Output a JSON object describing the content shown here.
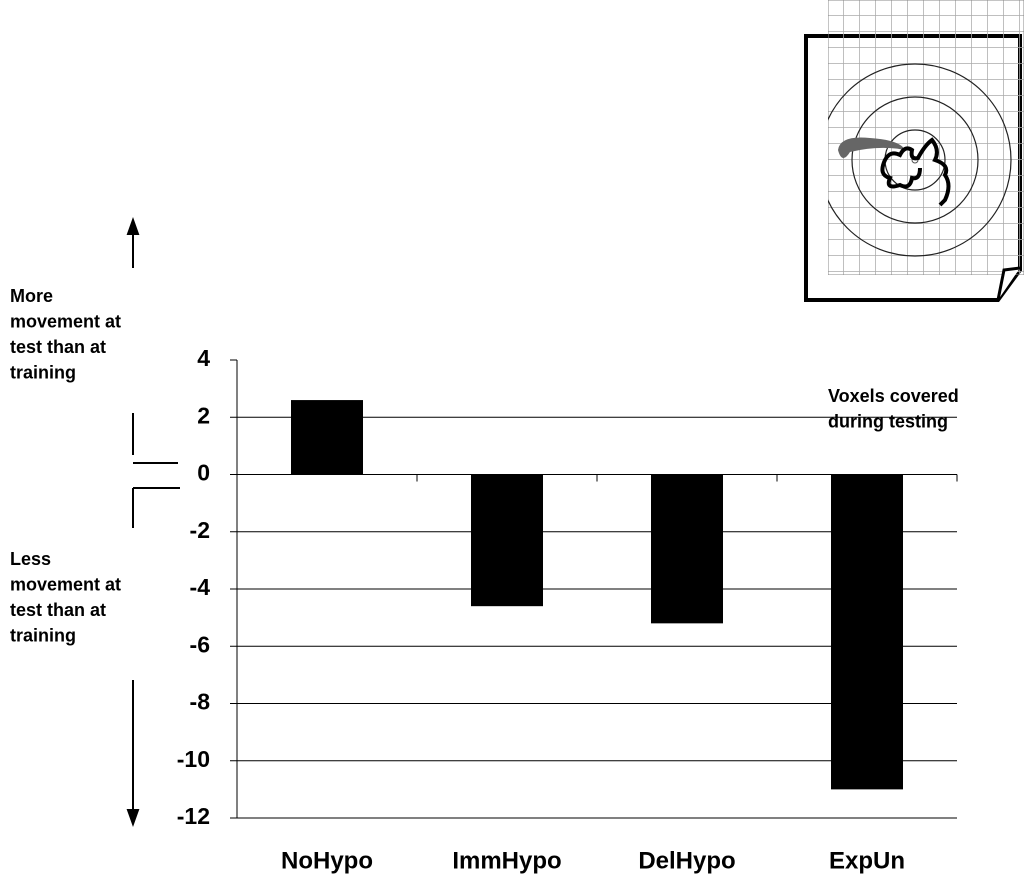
{
  "chart_data": {
    "type": "bar",
    "categories": [
      "NoHypo",
      "ImmHypo",
      "DelHypo",
      "ExpUn"
    ],
    "values": [
      2.6,
      -4.6,
      -5.2,
      -11
    ],
    "color": "#000000",
    "ylim": [
      -12,
      4
    ],
    "yticks": [
      -12,
      -10,
      -8,
      -6,
      -4,
      -2,
      0,
      2,
      4
    ],
    "grid": true,
    "annotations": [
      [
        "More",
        "movement at",
        "test than at",
        "training"
      ],
      [
        "Less",
        "movement at",
        "test than at",
        "training"
      ],
      [
        "Voxels covered",
        "during testing"
      ]
    ]
  }
}
